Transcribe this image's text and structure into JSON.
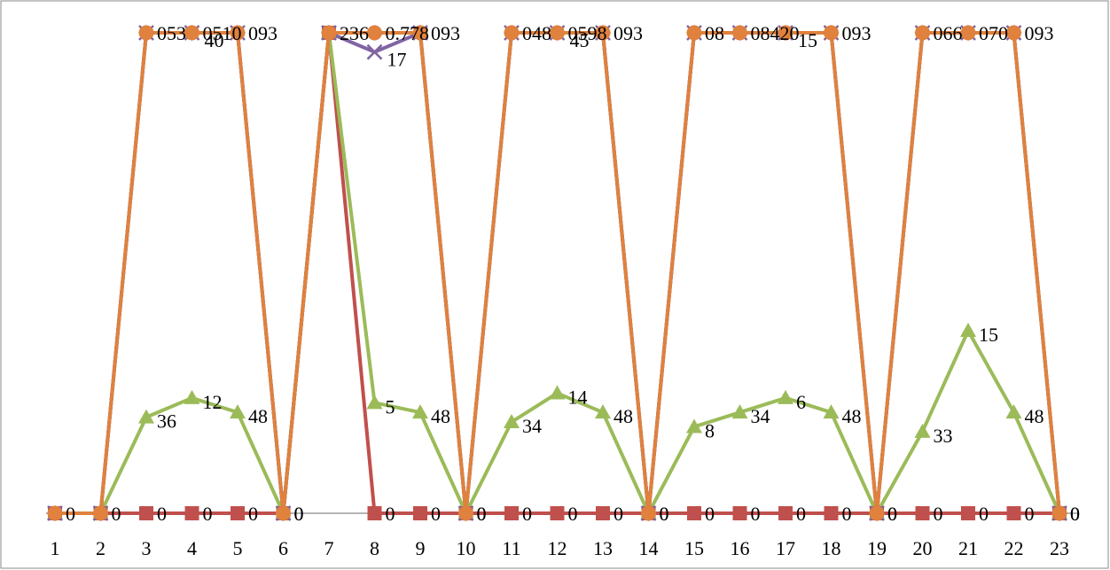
{
  "chart_data": {
    "type": "line",
    "title": "",
    "xlabel": "",
    "ylabel": "",
    "categories": [
      "1",
      "2",
      "3",
      "4",
      "5",
      "6",
      "7",
      "8",
      "9",
      "10",
      "11",
      "12",
      "13",
      "14",
      "15",
      "16",
      "17",
      "18",
      "19",
      "20",
      "21",
      "22",
      "23"
    ],
    "ylim": [
      0,
      1
    ],
    "grid": false,
    "legend": "none",
    "series": [
      {
        "color": "#4f81bd",
        "marker": "diamond",
        "values": [
          0,
          0,
          1,
          1,
          1,
          0,
          1,
          1,
          1,
          0,
          1,
          1,
          1,
          0,
          1,
          1,
          1,
          1,
          0,
          1,
          1,
          1,
          0
        ]
      },
      {
        "color": "#c0504d",
        "marker": "square",
        "values": [
          0,
          0,
          0,
          0,
          0,
          0,
          1,
          0,
          0,
          0,
          0,
          0,
          0,
          0,
          0,
          0,
          0,
          0,
          0,
          0,
          0,
          0,
          0
        ],
        "labels": [
          "",
          "0",
          "0",
          "0",
          "0",
          "0",
          "",
          "0",
          "0",
          "0",
          "0",
          "0",
          "0",
          "0",
          "0",
          "0",
          "0",
          "0",
          "0",
          "0",
          "0",
          "0",
          "0"
        ]
      },
      {
        "color": "#9bbb59",
        "marker": "triangle",
        "values": [
          0,
          0,
          0.2,
          0.24,
          0.21,
          0,
          1,
          0.23,
          0.21,
          0,
          0.19,
          0.25,
          0.21,
          0,
          0.18,
          0.21,
          0.24,
          0.21,
          0,
          0.17,
          0.38,
          0.21,
          0
        ],
        "labels": [
          "",
          "",
          "36",
          "12",
          "48",
          "",
          "",
          "5",
          "48",
          "",
          "34",
          "14",
          "48",
          "",
          "8",
          "34",
          "6",
          "48",
          "",
          "33",
          "15",
          "48",
          ""
        ]
      },
      {
        "color": "#8064a2",
        "marker": "x",
        "values": [
          0,
          0,
          1,
          1,
          1,
          0,
          1,
          0.96,
          1,
          0,
          1,
          1,
          1,
          0,
          1,
          1,
          1,
          1,
          0,
          1,
          1,
          1,
          0
        ],
        "labels": [
          "",
          "",
          "",
          "40",
          "",
          "",
          "",
          "17",
          "",
          "",
          "",
          "45",
          "",
          "",
          "",
          "",
          "15",
          "",
          "",
          "",
          "",
          "",
          ""
        ]
      },
      {
        "color": "#e0813d",
        "marker": "circle",
        "values": [
          0,
          0,
          1,
          1,
          1,
          0,
          1,
          1,
          1,
          0,
          1,
          1,
          1,
          0,
          1,
          1,
          1,
          1,
          0,
          1,
          1,
          1,
          0
        ],
        "labels": [
          "0",
          "",
          "053",
          "0510",
          "093",
          "0",
          "236",
          "0.778",
          "093",
          "0",
          "048",
          "0598",
          "093",
          "0",
          "08",
          "08420",
          "",
          "093",
          "0",
          "066",
          "070",
          "093",
          "0"
        ]
      }
    ]
  }
}
